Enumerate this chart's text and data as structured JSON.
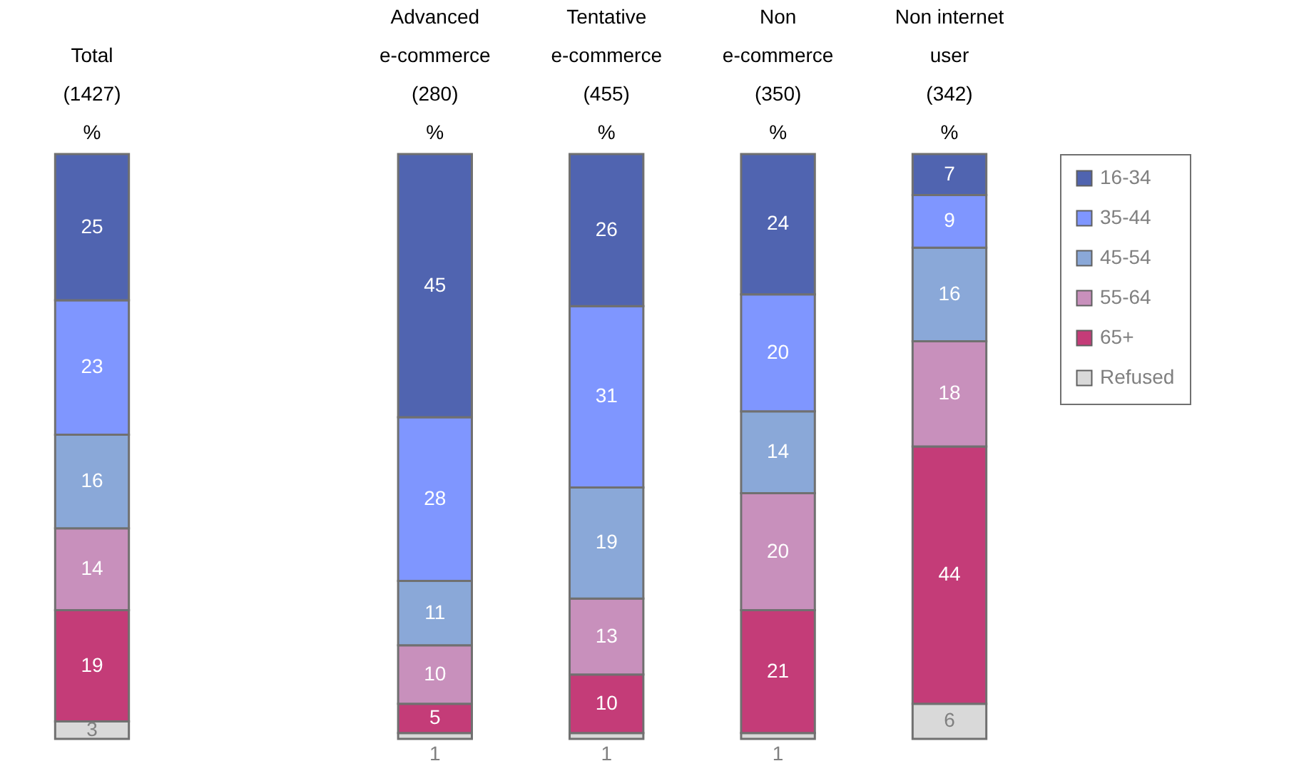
{
  "chart_data": {
    "type": "bar",
    "stacked": true,
    "data_labels": true,
    "legend": "right",
    "grid": false,
    "categories": [
      "Total\n(1427)\n%",
      null,
      "Advanced\ne-commerce\n(280)\n%",
      "Tentative\ne-commerce\n(455)\n%",
      "Non\ne-commerce\n(350)\n%",
      "Non internet\nuser\n(342)\n%"
    ],
    "series": [
      {
        "name": "Refused",
        "color": "#d9d9d9",
        "values": [
          3,
          null,
          1,
          1,
          1,
          6
        ]
      },
      {
        "name": "65+",
        "color": "#c43c78",
        "values": [
          19,
          null,
          5,
          10,
          21,
          44
        ]
      },
      {
        "name": "55-64",
        "color": "#c890bc",
        "values": [
          14,
          null,
          10,
          13,
          20,
          18
        ]
      },
      {
        "name": "45-54",
        "color": "#8aa8d8",
        "values": [
          16,
          null,
          11,
          19,
          14,
          16
        ]
      },
      {
        "name": "35-44",
        "color": "#7f96ff",
        "values": [
          23,
          null,
          28,
          31,
          20,
          9
        ]
      },
      {
        "name": "16-34",
        "color": "#5064b0",
        "values": [
          25,
          null,
          45,
          26,
          24,
          7
        ]
      }
    ]
  }
}
